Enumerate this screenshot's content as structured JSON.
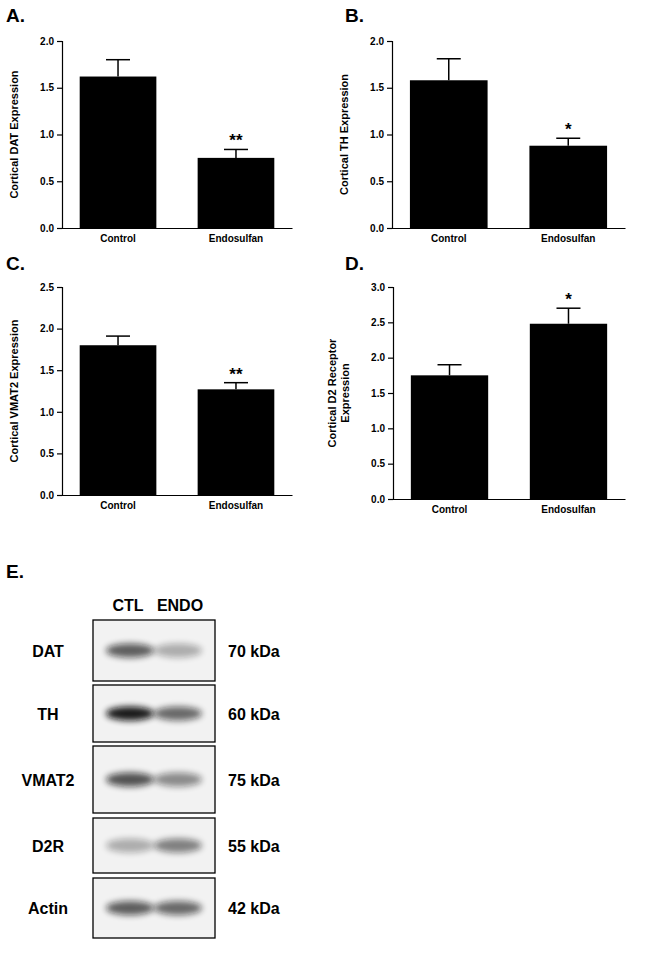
{
  "chart_data": [
    {
      "type": "bar",
      "annotations": [
        "A."
      ],
      "y_label": "Cortical DAT Expression",
      "categories": [
        "Control",
        "Endosulfan"
      ],
      "values": [
        1.62,
        0.75
      ],
      "errors": [
        0.18,
        0.09
      ],
      "color": "#000000",
      "significance": [
        {
          "category": "Endosulfan",
          "label": "**"
        }
      ],
      "ylim": [
        0,
        2.0
      ],
      "yticks": [
        {
          "value": 0,
          "label": "0.0"
        },
        {
          "value": 0.5,
          "label": "0.5"
        },
        {
          "value": 1.0,
          "label": "1.0"
        },
        {
          "value": 1.5,
          "label": "1.5"
        },
        {
          "value": 2.0,
          "label": "2.0"
        }
      ]
    },
    {
      "type": "bar",
      "annotations": [
        "B."
      ],
      "y_label": "Cortical TH Expression",
      "categories": [
        "Control",
        "Endosulfan"
      ],
      "values": [
        1.58,
        0.88
      ],
      "errors": [
        0.23,
        0.08
      ],
      "color": "#000000",
      "significance": [
        {
          "category": "Endosulfan",
          "label": "*"
        }
      ],
      "ylim": [
        0,
        2.0
      ],
      "yticks": [
        {
          "value": 0,
          "label": "0.0"
        },
        {
          "value": 0.5,
          "label": "0.5"
        },
        {
          "value": 1.0,
          "label": "1.0"
        },
        {
          "value": 1.5,
          "label": "1.5"
        },
        {
          "value": 2.0,
          "label": "2.0"
        }
      ]
    },
    {
      "type": "bar",
      "annotations": [
        "C."
      ],
      "y_label": "Cortical VMAT2 Expression",
      "categories": [
        "Control",
        "Endosulfan"
      ],
      "values": [
        1.8,
        1.27
      ],
      "errors": [
        0.11,
        0.08
      ],
      "color": "#000000",
      "significance": [
        {
          "category": "Endosulfan",
          "label": "**"
        }
      ],
      "ylim": [
        0,
        2.5
      ],
      "yticks": [
        {
          "value": 0,
          "label": "0.0"
        },
        {
          "value": 0.5,
          "label": "0.5"
        },
        {
          "value": 1.0,
          "label": "1.0"
        },
        {
          "value": 1.5,
          "label": "1.5"
        },
        {
          "value": 2.0,
          "label": "2.0"
        },
        {
          "value": 2.5,
          "label": "2.5"
        }
      ]
    },
    {
      "type": "bar",
      "annotations": [
        "D."
      ],
      "y_label": [
        "Cortical D2 Receptor",
        "Expression"
      ],
      "categories": [
        "Control",
        "Endosulfan"
      ],
      "values": [
        1.75,
        2.48
      ],
      "errors": [
        0.15,
        0.22
      ],
      "color": "#000000",
      "significance": [
        {
          "category": "Endosulfan",
          "label": "*"
        }
      ],
      "ylim": [
        0,
        3.0
      ],
      "yticks": [
        {
          "value": 0,
          "label": "0.0"
        },
        {
          "value": 0.5,
          "label": "0.5"
        },
        {
          "value": 1.0,
          "label": "1.0"
        },
        {
          "value": 1.5,
          "label": "1.5"
        },
        {
          "value": 2.0,
          "label": "2.0"
        },
        {
          "value": 2.5,
          "label": "2.5"
        },
        {
          "value": 3.0,
          "label": "3.0"
        }
      ]
    }
  ],
  "blot": {
    "panel": "E.",
    "lanes": [
      "CTL",
      "ENDO"
    ],
    "rows": [
      {
        "label": "DAT",
        "size": "70 kDa"
      },
      {
        "label": "TH",
        "size": "60 kDa"
      },
      {
        "label": "VMAT2",
        "size": "75 kDa"
      },
      {
        "label": "D2R",
        "size": "55 kDa"
      },
      {
        "label": "Actin",
        "size": "42 kDa"
      }
    ]
  }
}
